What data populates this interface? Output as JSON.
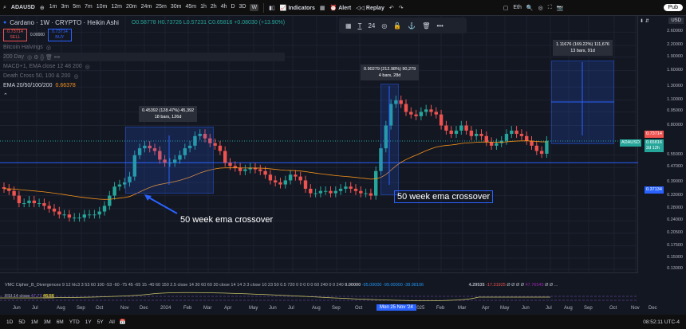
{
  "toolbar": {
    "symbol": "ADAUSD",
    "timeframes": [
      "1m",
      "3m",
      "5m",
      "7m",
      "10m",
      "12m",
      "20m",
      "24m",
      "25m",
      "30m",
      "45m",
      "1h",
      "2h",
      "4h",
      "D",
      "3D",
      "W"
    ],
    "active_tf": "W",
    "indicators": "Indicators",
    "alert": "Alert",
    "replay": "Replay",
    "layout": "Eth",
    "publish": "Pub"
  },
  "drawing_toolbar": {
    "font_size": "24"
  },
  "legend": {
    "title": "Cardano · 1W · CRYPTO · Heikin Ashi",
    "ohlc": "O0.58778 H0.73726 L0.57231 C0.65816 +0.08030 (+13.90%)",
    "sell_price": "0.73714",
    "sell": "SELL",
    "spread": "0.00000",
    "buy_price": "0.73714",
    "buy": "BUY",
    "studies": [
      "Bitcoin Halvings",
      "200 Day",
      "MACD+1, EMA close 12 48 200",
      "Death Cross 50, 100 & 200"
    ],
    "ema_label": "EMA 20/50/100/200",
    "ema_value": "0.66378"
  },
  "colors": {
    "up": "#26a69a",
    "down": "#ef5350",
    "ema": "#f7931a",
    "measure": "#2962ff",
    "bg": "#131722"
  },
  "price_axis": {
    "currency": "USD",
    "labels": [
      "2.60000",
      "2.20000",
      "1.90000",
      "1.60000",
      "1.30000",
      "1.10000",
      "0.95000",
      "0.80000",
      "0.55000",
      "0.47000",
      "0.39000",
      "0.33000",
      "0.28000",
      "0.24000",
      "0.20500",
      "0.17500",
      "0.15000",
      "0.13000"
    ],
    "ask_tag": "0.73714",
    "symbol_tag": "ADAUSD",
    "last_price": "0.65816",
    "countdown": "2d 12h",
    "level_tag": "0.37134"
  },
  "chart_data": {
    "type": "candlestick",
    "scale": "log",
    "start": "Jun 2023",
    "interval": "1W",
    "closes": [
      0.36,
      0.35,
      0.33,
      0.3,
      0.3,
      0.31,
      0.3,
      0.3,
      0.29,
      0.28,
      0.27,
      0.26,
      0.26,
      0.25,
      0.25,
      0.25,
      0.26,
      0.26,
      0.26,
      0.27,
      0.29,
      0.33,
      0.37,
      0.38,
      0.39,
      0.42,
      0.55,
      0.6,
      0.62,
      0.6,
      0.58,
      0.52,
      0.5,
      0.5,
      0.52,
      0.55,
      0.6,
      0.62,
      0.7,
      0.72,
      0.68,
      0.64,
      0.62,
      0.58,
      0.5,
      0.48,
      0.47,
      0.45,
      0.46,
      0.47,
      0.46,
      0.45,
      0.43,
      0.4,
      0.39,
      0.38,
      0.4,
      0.43,
      0.42,
      0.4,
      0.36,
      0.34,
      0.34,
      0.35,
      0.35,
      0.34,
      0.35,
      0.36,
      0.37,
      0.36,
      0.35,
      0.34,
      0.34,
      0.33,
      0.45,
      0.6,
      0.8,
      1.05,
      1.1,
      1.05,
      0.95,
      0.92,
      0.9,
      0.95,
      0.98,
      0.95,
      0.92,
      0.8,
      0.75,
      0.72,
      0.75,
      0.8,
      0.75,
      0.7,
      0.72,
      0.7,
      0.65,
      0.62,
      0.64,
      0.66,
      0.72,
      0.75,
      0.72,
      0.7,
      0.66,
      0.62,
      0.58,
      0.56,
      0.66
    ]
  },
  "measurements": [
    {
      "line1": "0.45392 (128.47%) 45,392",
      "line2": "18 bars, 126d"
    },
    {
      "line1": "0.90279 (212.98%) 90,279",
      "line2": "4 bars, 28d"
    },
    {
      "line1": "1.11676 (169.22%) 111,676",
      "line2": "13 bars, 91d"
    }
  ],
  "annotations": [
    "50 week ema crossover",
    "50 week ema crossover"
  ],
  "indicators": {
    "vmc": "VMC Cipher_B_Divergences 9 12 hlc3 3 53 60 100 -53 -60 -75 45 -65 15 -40 60 150 2.5 close 14 30 60 60 30 close 14 14 3 3 close 10 23 50 0.5 720 0 0 0 0 0 60 240 0 0 240",
    "vmc_vals": [
      "0.00000",
      "-95.00000",
      "-99.00000",
      "-38.98106",
      "4.29535",
      "-17.31925",
      "Ø Ø Ø Ø",
      "47.76545",
      "Ø Ø ..."
    ],
    "rsi": "RSI 14 close",
    "rsi_a": "47.77",
    "rsi_b": "46.56"
  },
  "time_axis": {
    "labels": [
      "Jun",
      "Jul",
      "Aug",
      "Sep",
      "Oct",
      "Nov",
      "Dec",
      "2024",
      "Feb",
      "Mar",
      "Apr",
      "May",
      "Jun",
      "Jul",
      "Aug",
      "Sep",
      "Oct",
      "2025",
      "Feb",
      "Mar",
      "Apr",
      "May",
      "Jun",
      "Jul",
      "Aug",
      "Sep",
      "Oct",
      "Nov",
      "Dec"
    ],
    "crosshair": "Mon 25 Nov '24"
  },
  "bottom": {
    "ranges": [
      "1D",
      "5D",
      "1M",
      "3M",
      "6M",
      "YTD",
      "1Y",
      "5Y",
      "All"
    ],
    "clock": "08:52:11 UTC-4"
  }
}
